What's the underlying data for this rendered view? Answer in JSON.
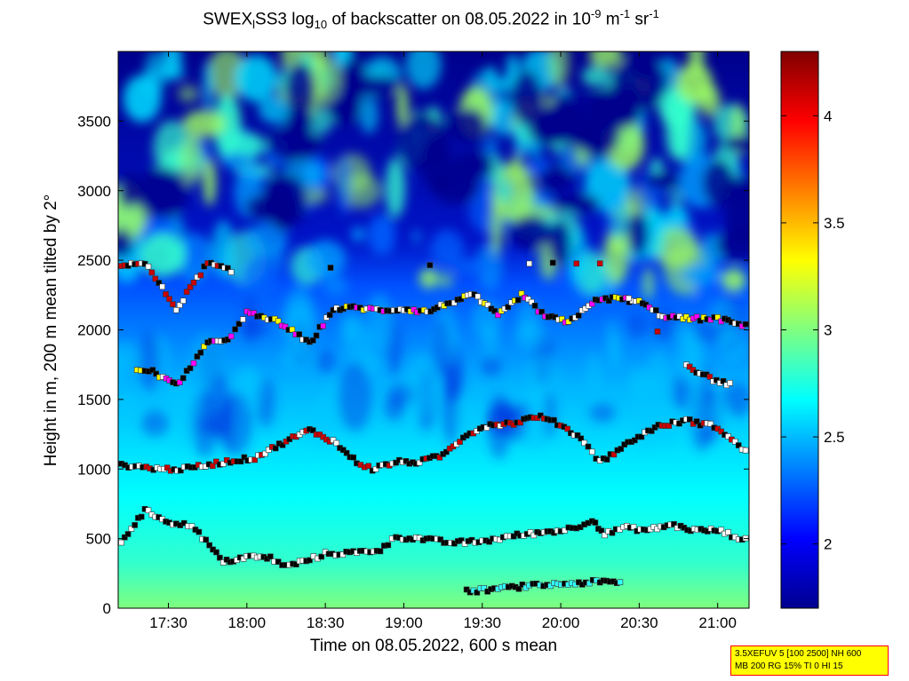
{
  "chart_data": {
    "type": "heatmap",
    "title_parts": {
      "pre": "SWEX",
      "sub1": "l",
      "mid1": "SS3 log",
      "sub2": "10",
      "mid2": " of backscatter on 08.05.2022 in 10",
      "sup1": "-9",
      "mid3": " m",
      "sup2": "-1",
      "mid4": " sr",
      "sup3": "-1"
    },
    "xlabel": "Time on 08.05.2022, 600 s mean",
    "ylabel": "Height in m, 200 m mean tilted by 2°",
    "x_unit": "hours",
    "xlim": [
      17.18,
      21.2
    ],
    "ylim": [
      0,
      4000
    ],
    "x_ticks": [
      {
        "value": 17.5,
        "label": "17:30"
      },
      {
        "value": 18.0,
        "label": "18:00"
      },
      {
        "value": 18.5,
        "label": "18:30"
      },
      {
        "value": 19.0,
        "label": "19:00"
      },
      {
        "value": 19.5,
        "label": "19:30"
      },
      {
        "value": 20.0,
        "label": "20:00"
      },
      {
        "value": 20.5,
        "label": "20:30"
      },
      {
        "value": 21.0,
        "label": "21:00"
      }
    ],
    "y_ticks": [
      {
        "value": 0,
        "label": "0"
      },
      {
        "value": 500,
        "label": "500"
      },
      {
        "value": 1000,
        "label": "1000"
      },
      {
        "value": 1500,
        "label": "1500"
      },
      {
        "value": 2000,
        "label": "2000"
      },
      {
        "value": 2500,
        "label": "2500"
      },
      {
        "value": 3000,
        "label": "3000"
      },
      {
        "value": 3500,
        "label": "3500"
      }
    ],
    "colorbar": {
      "range": [
        1.7,
        4.3
      ],
      "ticks": [
        {
          "value": 2,
          "label": "2"
        },
        {
          "value": 2.5,
          "label": "2.5"
        },
        {
          "value": 3,
          "label": "3"
        },
        {
          "value": 3.5,
          "label": "3.5"
        },
        {
          "value": 4,
          "label": "4"
        }
      ],
      "colormap": "jet"
    },
    "layers": [
      {
        "name": "low",
        "points": [
          [
            17.2,
            480
          ],
          [
            17.35,
            700
          ],
          [
            17.55,
            600
          ],
          [
            17.65,
            600
          ],
          [
            17.85,
            330
          ],
          [
            18.0,
            370
          ],
          [
            18.15,
            360
          ],
          [
            18.25,
            300
          ],
          [
            18.4,
            350
          ],
          [
            18.5,
            390
          ],
          [
            18.7,
            400
          ],
          [
            18.85,
            420
          ],
          [
            18.95,
            510
          ],
          [
            19.1,
            500
          ],
          [
            19.3,
            470
          ],
          [
            19.5,
            480
          ],
          [
            19.7,
            520
          ],
          [
            19.85,
            540
          ],
          [
            20.0,
            560
          ],
          [
            20.1,
            580
          ],
          [
            20.2,
            640
          ],
          [
            20.28,
            530
          ],
          [
            20.4,
            580
          ],
          [
            20.55,
            560
          ],
          [
            20.7,
            600
          ],
          [
            20.85,
            560
          ],
          [
            21.0,
            560
          ],
          [
            21.2,
            480
          ]
        ]
      },
      {
        "name": "mid-low",
        "points": [
          [
            17.2,
            1030
          ],
          [
            17.45,
            1000
          ],
          [
            17.6,
            1000
          ],
          [
            17.85,
            1050
          ],
          [
            18.05,
            1080
          ],
          [
            18.25,
            1200
          ],
          [
            18.4,
            1280
          ],
          [
            18.55,
            1200
          ],
          [
            18.7,
            1050
          ],
          [
            18.8,
            1000
          ],
          [
            18.95,
            1050
          ],
          [
            19.1,
            1050
          ],
          [
            19.25,
            1100
          ],
          [
            19.4,
            1250
          ],
          [
            19.55,
            1320
          ],
          [
            19.7,
            1330
          ],
          [
            19.85,
            1380
          ],
          [
            20.0,
            1320
          ],
          [
            20.15,
            1200
          ],
          [
            20.25,
            1050
          ],
          [
            20.45,
            1200
          ],
          [
            20.6,
            1300
          ],
          [
            20.8,
            1350
          ],
          [
            21.0,
            1300
          ],
          [
            21.2,
            1100
          ]
        ]
      },
      {
        "name": "mid",
        "points": [
          [
            17.3,
            1720
          ],
          [
            17.4,
            1700
          ],
          [
            17.55,
            1600
          ],
          [
            17.75,
            1900
          ],
          [
            17.9,
            1950
          ],
          [
            18.0,
            2120
          ],
          [
            18.2,
            2060
          ],
          [
            18.4,
            1900
          ],
          [
            18.55,
            2150
          ],
          [
            18.7,
            2160
          ],
          [
            18.85,
            2140
          ],
          [
            19.0,
            2150
          ],
          [
            19.15,
            2130
          ],
          [
            19.3,
            2200
          ],
          [
            19.45,
            2250
          ],
          [
            19.6,
            2100
          ],
          [
            19.75,
            2250
          ],
          [
            19.9,
            2100
          ],
          [
            20.05,
            2050
          ],
          [
            20.2,
            2200
          ],
          [
            20.35,
            2230
          ],
          [
            20.5,
            2200
          ],
          [
            20.65,
            2100
          ],
          [
            20.8,
            2080
          ],
          [
            21.0,
            2080
          ],
          [
            21.2,
            2020
          ]
        ]
      },
      {
        "name": "upper",
        "points": [
          [
            17.2,
            2470
          ],
          [
            17.35,
            2480
          ],
          [
            17.55,
            2150
          ],
          [
            17.75,
            2480
          ],
          [
            17.9,
            2420
          ],
          [
            19.8,
            2480
          ],
          [
            20.25,
            2480
          ],
          [
            20.8,
            1750
          ],
          [
            20.95,
            1650
          ],
          [
            21.1,
            1600
          ]
        ]
      },
      {
        "name": "ground",
        "points": [
          [
            19.4,
            120
          ],
          [
            19.6,
            140
          ],
          [
            19.8,
            160
          ],
          [
            20.25,
            190
          ],
          [
            20.4,
            180
          ]
        ]
      }
    ]
  },
  "info_box": {
    "line1": "3.5XEFUV 5 [100 2500] NH 600",
    "line2": "MB 200 RG 15% TI 0 HI 15"
  }
}
